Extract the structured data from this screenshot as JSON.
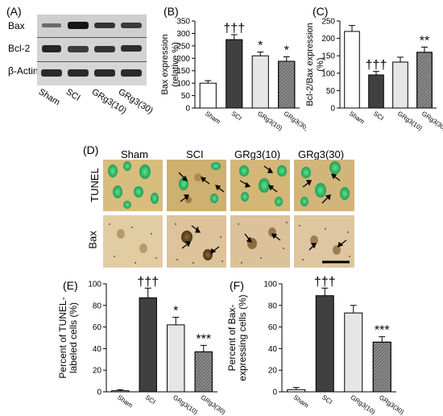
{
  "panel_labels": {
    "a": "(A)",
    "b": "(B)",
    "c": "(C)",
    "d": "(D)",
    "e": "(E)",
    "f": "(F)"
  },
  "blot": {
    "rows": [
      "Bax",
      "Bcl-2",
      "β-Actin"
    ],
    "lanes": [
      "Sham",
      "SCI",
      "GRg3(10)",
      "GRg3(30)"
    ]
  },
  "micro": {
    "columns": [
      "Sham",
      "SCI",
      "GRg3(10)",
      "GRg3(30)"
    ],
    "rows": [
      "TUNEL",
      "Bax"
    ]
  },
  "chart_data": [
    {
      "id": "B",
      "type": "bar",
      "categories": [
        "Sham",
        "SCI",
        "GRg3(10)",
        "GRg3(30)"
      ],
      "values": [
        100,
        275,
        210,
        188
      ],
      "errors": [
        10,
        20,
        15,
        18
      ],
      "ylabel": "Bax expression (relative %)",
      "ylabel_lines": [
        "Bax expression",
        "(relative %)"
      ],
      "ylim": [
        0,
        350
      ],
      "yticks": [
        0,
        50,
        100,
        150,
        200,
        250,
        300,
        350
      ],
      "significance": [
        "",
        "†††",
        "*",
        "*"
      ],
      "fills": [
        "#ffffff",
        "#404040",
        "#e6e6e6",
        "#8c8c8c"
      ]
    },
    {
      "id": "C",
      "type": "bar",
      "categories": [
        "Sham",
        "SCI",
        "GRg3(10)",
        "GRg3(30)"
      ],
      "values": [
        220,
        95,
        132,
        160
      ],
      "errors": [
        17,
        10,
        14,
        15
      ],
      "ylabel": "Bcl-2/Bax expression (%)",
      "ylabel_lines": [
        "Bcl-2/Bax expression",
        "(%)"
      ],
      "ylim": [
        0,
        250
      ],
      "yticks": [
        0,
        50,
        100,
        150,
        200,
        250
      ],
      "significance": [
        "",
        "†††",
        "",
        "**"
      ],
      "fills": [
        "#ffffff",
        "#404040",
        "#e6e6e6",
        "#8c8c8c"
      ]
    },
    {
      "id": "E",
      "type": "bar",
      "categories": [
        "Sham",
        "SCI",
        "GRg3(10)",
        "GRg3(30)"
      ],
      "values": [
        1,
        87,
        62,
        37
      ],
      "errors": [
        1,
        9,
        7,
        6
      ],
      "ylabel": "Percent of TUNEL-labeled cells (%)",
      "ylabel_lines": [
        "Percent of TUNEL-",
        "labeled cells (%)"
      ],
      "ylim": [
        0,
        100
      ],
      "yticks": [
        0,
        20,
        40,
        60,
        80,
        100
      ],
      "significance": [
        "",
        "†††",
        "*",
        "***"
      ],
      "fills": [
        "#ffffff",
        "#404040",
        "#e6e6e6",
        "#8c8c8c"
      ]
    },
    {
      "id": "F",
      "type": "bar",
      "categories": [
        "Sham",
        "SCI",
        "GRg3(10)",
        "GRg3(30)"
      ],
      "values": [
        2,
        89,
        73,
        46
      ],
      "errors": [
        2,
        7,
        7,
        5
      ],
      "ylabel": "Percent of Bax-expressing cells (%)",
      "ylabel_lines": [
        "Percent of Bax-",
        "expressing cells (%)"
      ],
      "ylim": [
        0,
        100
      ],
      "yticks": [
        0,
        20,
        40,
        60,
        80,
        100
      ],
      "significance": [
        "",
        "†††",
        "",
        "***"
      ],
      "fills": [
        "#ffffff",
        "#404040",
        "#e6e6e6",
        "#8c8c8c"
      ]
    }
  ]
}
